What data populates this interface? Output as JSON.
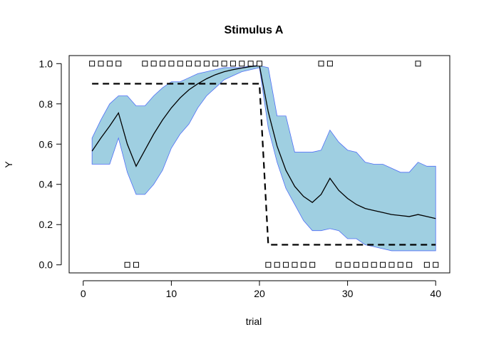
{
  "chart_data": {
    "type": "line",
    "title": "Stimulus A",
    "xlabel": "trial",
    "ylabel": "Y",
    "xlim": [
      -1.6,
      41.6
    ],
    "ylim": [
      -0.04,
      1.04
    ],
    "x_ticks": [
      0,
      10,
      20,
      30,
      40
    ],
    "y_ticks": [
      "0.0",
      "0.2",
      "0.4",
      "0.6",
      "0.8",
      "1.0"
    ],
    "grid": false,
    "colors": {
      "band_fill": "#9fcfe1",
      "band_edge": "#4f6ef7",
      "mean_line": "#000000",
      "target_line": "#000000"
    },
    "series": [
      {
        "type": "band",
        "x": [
          1,
          2,
          3,
          4,
          5,
          6,
          7,
          8,
          9,
          10,
          11,
          12,
          13,
          14,
          15,
          16,
          17,
          18,
          19,
          20,
          21,
          22,
          23,
          24,
          25,
          26,
          27,
          28,
          29,
          30,
          31,
          32,
          33,
          34,
          35,
          36,
          37,
          38,
          39,
          40
        ],
        "lower": [
          0.5,
          0.5,
          0.5,
          0.63,
          0.46,
          0.35,
          0.35,
          0.4,
          0.47,
          0.58,
          0.65,
          0.7,
          0.78,
          0.84,
          0.88,
          0.92,
          0.94,
          0.96,
          0.97,
          0.98,
          0.68,
          0.51,
          0.38,
          0.3,
          0.22,
          0.17,
          0.17,
          0.18,
          0.17,
          0.13,
          0.13,
          0.1,
          0.09,
          0.08,
          0.07,
          0.07,
          0.07,
          0.07,
          0.07,
          0.07
        ],
        "upper": [
          0.63,
          0.72,
          0.8,
          0.84,
          0.84,
          0.79,
          0.79,
          0.84,
          0.88,
          0.91,
          0.91,
          0.93,
          0.95,
          0.96,
          0.97,
          0.98,
          0.98,
          0.98,
          0.99,
          0.99,
          0.98,
          0.74,
          0.74,
          0.56,
          0.56,
          0.56,
          0.57,
          0.67,
          0.61,
          0.57,
          0.56,
          0.51,
          0.5,
          0.5,
          0.48,
          0.46,
          0.46,
          0.51,
          0.49,
          0.49
        ]
      },
      {
        "type": "line",
        "x": [
          1,
          2,
          3,
          4,
          5,
          6,
          7,
          8,
          9,
          10,
          11,
          12,
          13,
          14,
          15,
          16,
          17,
          18,
          19,
          20,
          21,
          22,
          23,
          24,
          25,
          26,
          27,
          28,
          29,
          30,
          31,
          32,
          33,
          34,
          35,
          36,
          37,
          38,
          39,
          40
        ],
        "y": [
          0.565,
          0.63,
          0.69,
          0.755,
          0.6,
          0.49,
          0.57,
          0.65,
          0.72,
          0.78,
          0.83,
          0.87,
          0.9,
          0.925,
          0.945,
          0.96,
          0.97,
          0.978,
          0.985,
          0.99,
          0.76,
          0.59,
          0.47,
          0.39,
          0.34,
          0.31,
          0.35,
          0.43,
          0.37,
          0.33,
          0.3,
          0.28,
          0.27,
          0.26,
          0.25,
          0.245,
          0.24,
          0.25,
          0.24,
          0.23
        ]
      },
      {
        "type": "dashed",
        "x": [
          1,
          20,
          21,
          40
        ],
        "y": [
          0.9,
          0.9,
          0.1,
          0.1
        ]
      },
      {
        "type": "points",
        "marker": "square",
        "x": [
          1,
          2,
          3,
          4,
          5,
          6,
          7,
          8,
          9,
          10,
          11,
          12,
          13,
          14,
          15,
          16,
          17,
          18,
          19,
          20,
          21,
          22,
          23,
          24,
          25,
          26,
          27,
          28,
          29,
          30,
          31,
          32,
          33,
          34,
          35,
          36,
          37,
          38,
          39,
          40
        ],
        "y": [
          1,
          1,
          1,
          1,
          0,
          0,
          1,
          1,
          1,
          1,
          1,
          1,
          1,
          1,
          1,
          1,
          1,
          1,
          1,
          1,
          0,
          0,
          0,
          0,
          0,
          0,
          1,
          1,
          0,
          0,
          0,
          0,
          0,
          0,
          0,
          0,
          0,
          1,
          0,
          0
        ]
      }
    ]
  }
}
